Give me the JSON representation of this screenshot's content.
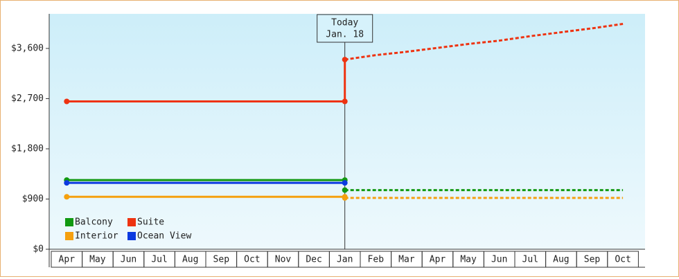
{
  "chart_data": {
    "type": "line",
    "categories": [
      "Apr",
      "May",
      "Jun",
      "Jul",
      "Aug",
      "Sep",
      "Oct",
      "Nov",
      "Dec",
      "Jan",
      "Feb",
      "Mar",
      "Apr",
      "May",
      "Jun",
      "Jul",
      "Aug",
      "Sep",
      "Oct"
    ],
    "ylim": [
      0,
      4220
    ],
    "yticks": [
      {
        "value": 0,
        "label": "$0"
      },
      {
        "value": 900,
        "label": "$900"
      },
      {
        "value": 1800,
        "label": "$1,800"
      },
      {
        "value": 2700,
        "label": "$2,700"
      },
      {
        "value": 3600,
        "label": "$3,600"
      }
    ],
    "today": {
      "category_index": 9,
      "label": "Today",
      "date": "Jan. 18"
    },
    "series": [
      {
        "name": "Balcony",
        "color": "#119911",
        "values": [
          1240,
          1240,
          1240,
          1240,
          1240,
          1240,
          1240,
          1240,
          1240,
          1240,
          null,
          null,
          null,
          null,
          null,
          null,
          null,
          null,
          null
        ],
        "forecast": [
          null,
          null,
          null,
          null,
          null,
          null,
          null,
          null,
          null,
          1060,
          1060,
          1060,
          1060,
          1060,
          1060,
          1060,
          1060,
          1060,
          1060
        ]
      },
      {
        "name": "Interior",
        "color": "#f5a00f",
        "values": [
          940,
          940,
          940,
          940,
          940,
          940,
          940,
          940,
          940,
          940,
          null,
          null,
          null,
          null,
          null,
          null,
          null,
          null,
          null
        ],
        "forecast": [
          null,
          null,
          null,
          null,
          null,
          null,
          null,
          null,
          null,
          920,
          920,
          920,
          920,
          920,
          920,
          920,
          920,
          920,
          920
        ]
      },
      {
        "name": "Suite",
        "color": "#ee3311",
        "values": [
          2650,
          2650,
          2650,
          2650,
          2650,
          2650,
          2650,
          2650,
          2650,
          2650,
          null,
          null,
          null,
          null,
          null,
          null,
          null,
          null,
          null
        ],
        "forecast": [
          null,
          null,
          null,
          null,
          null,
          null,
          null,
          null,
          null,
          3400,
          3480,
          3540,
          3610,
          3680,
          3740,
          3820,
          3890,
          3960,
          4040
        ]
      },
      {
        "name": "Ocean View",
        "color": "#0b3ae0",
        "values": [
          1190,
          1190,
          1190,
          1190,
          1190,
          1190,
          1190,
          1190,
          1190,
          1190,
          null,
          null,
          null,
          null,
          null,
          null,
          null,
          null,
          null
        ],
        "forecast": [
          null,
          null,
          null,
          null,
          null,
          null,
          null,
          null,
          null,
          null,
          null,
          null,
          null,
          null,
          null,
          null,
          null,
          null,
          null
        ]
      }
    ]
  }
}
